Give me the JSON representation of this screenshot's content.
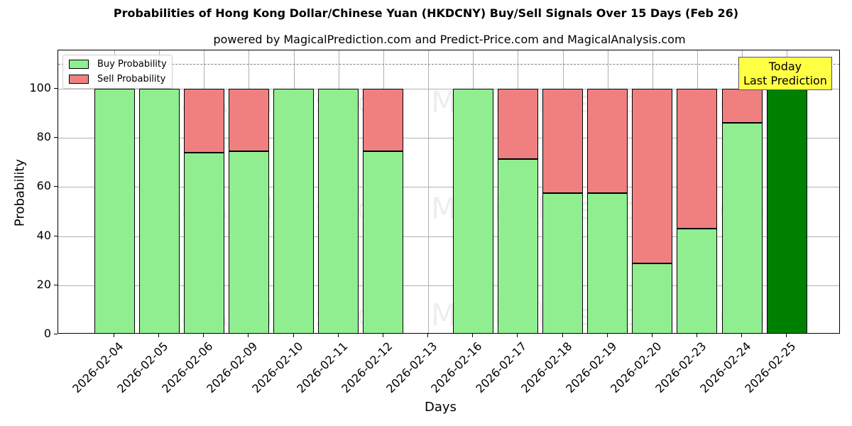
{
  "header": {
    "title": "Probabilities of Hong Kong Dollar/Chinese Yuan (HKDCNY) Buy/Sell Signals Over 15 Days (Feb 26)",
    "subtitle": "powered by MagicalPrediction.com and Predict-Price.com and MagicalAnalysis.com"
  },
  "legend": {
    "buy_label": "Buy Probability",
    "sell_label": "Sell Probability"
  },
  "annotation": {
    "line1": "Today",
    "line2": "Last Prediction"
  },
  "watermarks": {
    "left": "MagicalAnalysis.com",
    "right": "MagicalPrediction.com"
  },
  "axes": {
    "xlabel": "Days",
    "ylabel": "Probability",
    "yticks": [
      "0",
      "20",
      "40",
      "60",
      "80",
      "100"
    ]
  },
  "colors": {
    "buy": "#90ee90",
    "sell": "#f08080",
    "today": "#008000",
    "annotation_bg": "#ffff44"
  },
  "chart_data": {
    "type": "bar",
    "stacked": true,
    "title": "Probabilities of Hong Kong Dollar/Chinese Yuan (HKDCNY) Buy/Sell Signals Over 15 Days (Feb 26)",
    "subtitle": "powered by MagicalPrediction.com and Predict-Price.com and MagicalAnalysis.com",
    "xlabel": "Days",
    "ylabel": "Probability",
    "ylim": [
      0,
      115
    ],
    "yticks": [
      0,
      20,
      40,
      60,
      80,
      100
    ],
    "grid": true,
    "legend_position": "upper left",
    "reference_line": {
      "y": 110,
      "style": "dashed",
      "color": "#808080"
    },
    "categories": [
      "2026-02-04",
      "2026-02-05",
      "2026-02-06",
      "2026-02-09",
      "2026-02-10",
      "2026-02-11",
      "2026-02-12",
      "2026-02-13",
      "2026-02-16",
      "2026-02-17",
      "2026-02-18",
      "2026-02-19",
      "2026-02-20",
      "2026-02-23",
      "2026-02-24",
      "2026-02-25"
    ],
    "series": [
      {
        "name": "Buy Probability",
        "color": "#90ee90",
        "values": [
          100,
          100,
          74.0,
          74.6,
          100,
          100,
          74.6,
          null,
          100,
          71.4,
          57.5,
          57.5,
          28.9,
          43.1,
          86.1,
          100
        ]
      },
      {
        "name": "Sell Probability",
        "color": "#f08080",
        "values": [
          0,
          0,
          26.0,
          25.4,
          0,
          0,
          25.4,
          null,
          0,
          28.6,
          42.5,
          42.5,
          71.1,
          56.9,
          13.9,
          0
        ]
      }
    ],
    "highlight": {
      "category": "2026-02-25",
      "color": "#008000",
      "annotation": "Today\nLast Prediction"
    }
  }
}
